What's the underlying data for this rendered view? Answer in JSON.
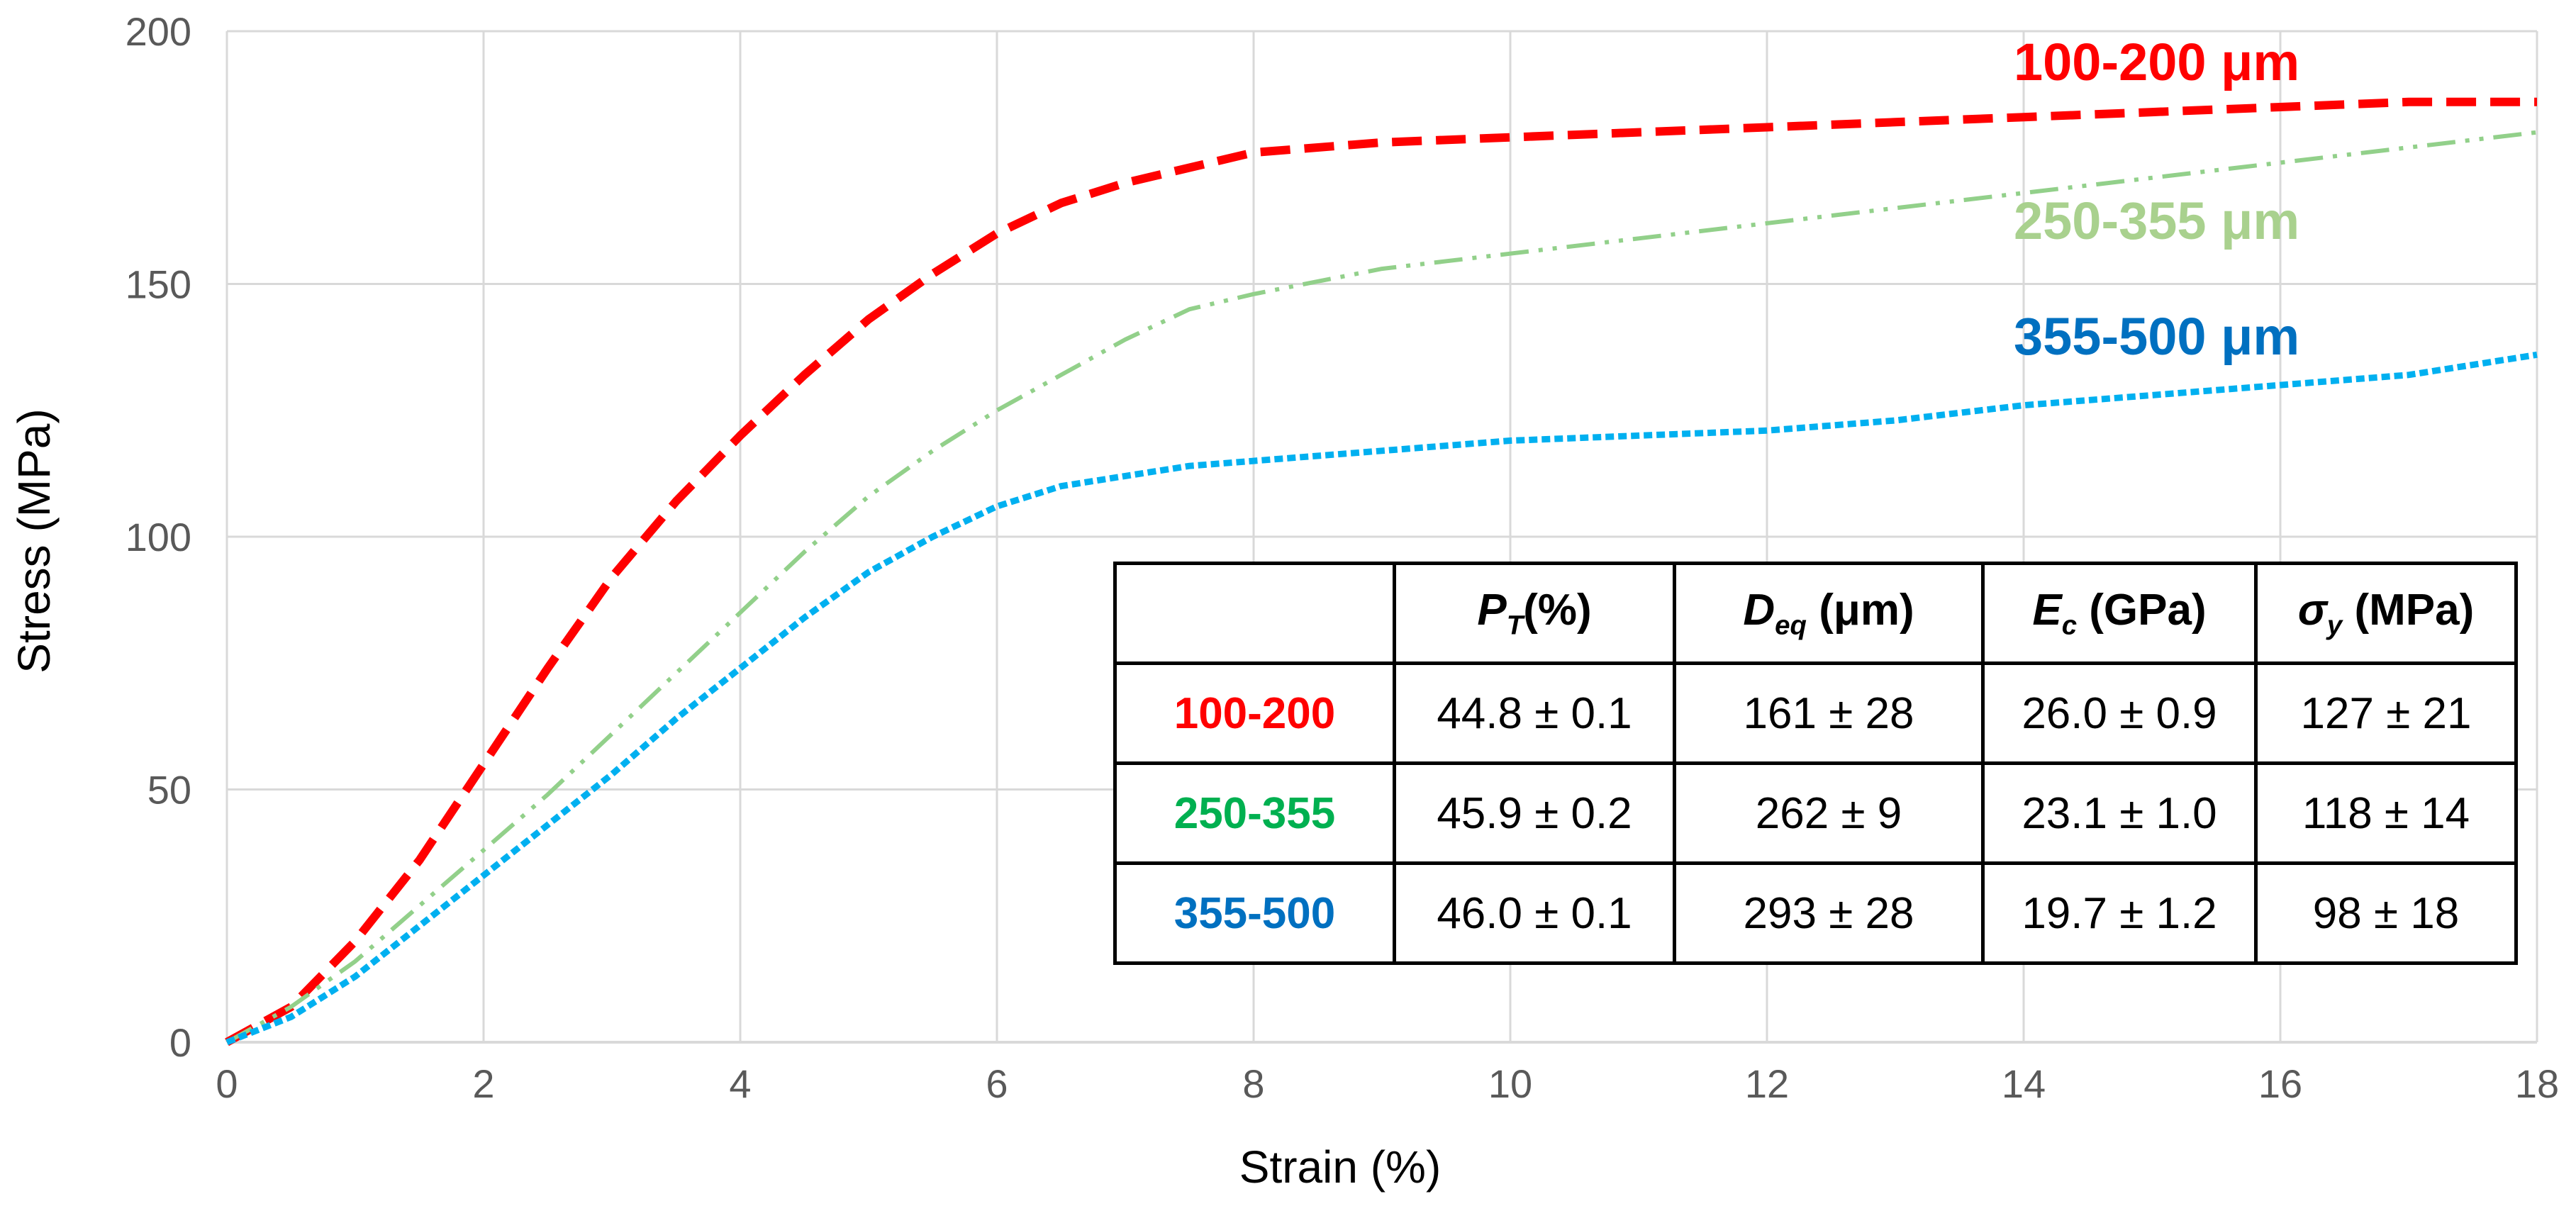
{
  "chart_data": {
    "type": "line",
    "title": "",
    "xlabel": "Strain (%)",
    "ylabel": "Stress (MPa)",
    "xlim": [
      0,
      18
    ],
    "ylim": [
      0,
      200
    ],
    "xticks": [
      "0",
      "2",
      "4",
      "6",
      "8",
      "10",
      "12",
      "14",
      "16",
      "18"
    ],
    "yticks": [
      "0",
      "50",
      "100",
      "150",
      "200"
    ],
    "grid": true,
    "series": [
      {
        "name": "100-200 μm",
        "color": "#ff0000",
        "style": "dashed",
        "x": [
          0,
          0.5,
          1,
          1.5,
          2,
          2.5,
          3,
          3.5,
          4,
          4.5,
          5,
          5.5,
          6,
          6.5,
          7,
          7.5,
          8,
          9,
          10,
          11,
          12,
          13,
          14,
          15,
          16,
          17,
          18
        ],
        "y": [
          0,
          7,
          20,
          36,
          55,
          74,
          92,
          107,
          120,
          132,
          143,
          152,
          160,
          166,
          170,
          173,
          176,
          178,
          179,
          180,
          181,
          182,
          183,
          184,
          185,
          186,
          186
        ]
      },
      {
        "name": "250-355 μm",
        "color": "#92d08a",
        "style": "dash-dot-dot",
        "x": [
          0,
          0.5,
          1,
          1.5,
          2,
          2.5,
          3,
          3.5,
          4,
          4.5,
          5,
          5.5,
          6,
          6.5,
          7,
          7.5,
          8,
          9,
          10,
          11,
          12,
          13,
          14,
          15,
          16,
          17,
          18
        ],
        "y": [
          0,
          7,
          16,
          27,
          38,
          49,
          61,
          73,
          85,
          97,
          108,
          117,
          125,
          132,
          139,
          145,
          148,
          153,
          156,
          159,
          162,
          165,
          168,
          171,
          174,
          177,
          180
        ]
      },
      {
        "name": "355-500 μm",
        "color": "#00b0f0",
        "style": "dotted",
        "x": [
          0,
          0.5,
          1,
          1.5,
          2,
          2.5,
          3,
          3.5,
          4,
          4.5,
          5,
          5.5,
          6,
          6.5,
          7,
          7.5,
          8,
          9,
          10,
          11,
          12,
          13,
          14,
          15,
          16,
          17,
          18
        ],
        "y": [
          0,
          5,
          13,
          23,
          33,
          43,
          53,
          64,
          74,
          84,
          93,
          100,
          106,
          110,
          112,
          114,
          115,
          117,
          119,
          120,
          121,
          123,
          126,
          128,
          130,
          132,
          136
        ]
      }
    ],
    "annotations": [
      {
        "text": "100-200 μm",
        "color": "#ff0000"
      },
      {
        "text": "250-355 μm",
        "color": "#a9d18e"
      },
      {
        "text": "355-500 μm",
        "color": "#0070c0"
      }
    ]
  },
  "table": {
    "header": {
      "pt_sym": "P",
      "pt_sub": "T",
      "pt_unit": "(%)",
      "deq_sym": "D",
      "deq_sub": "eq",
      "deq_unit": " (μm)",
      "ec_sym": "E",
      "ec_sub": "c",
      "ec_unit": " (GPa)",
      "sy_sym": "σ",
      "sy_sub": "y",
      "sy_unit": " (MPa)"
    },
    "rows": [
      {
        "label": "100-200",
        "color": "#ff0000",
        "pt": "44.8 ± 0.1",
        "deq": "161 ± 28",
        "ec": "26.0 ± 0.9",
        "sy": "127 ± 21"
      },
      {
        "label": "250-355",
        "color": "#00b050",
        "pt": "45.9 ± 0.2",
        "deq": "262 ± 9",
        "ec": "23.1 ± 1.0",
        "sy": "118 ± 14"
      },
      {
        "label": "355-500",
        "color": "#0070c0",
        "pt": "46.0 ± 0.1",
        "deq": "293 ± 28",
        "ec": "19.7 ± 1.2",
        "sy": "98 ± 18"
      }
    ]
  }
}
